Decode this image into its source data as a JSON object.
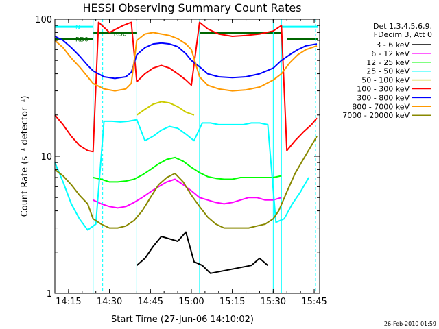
{
  "chart_data": {
    "type": "line",
    "title": "HESSI Observing Summary Count Rates",
    "xlabel": "Start Time (27-Jun-06 14:10:02)",
    "ylabel": "Count Rate (s⁻¹ detector⁻¹)",
    "x_unit": "minutes since 14:10:02",
    "xlim": [
      0,
      97
    ],
    "ylim": [
      1,
      100
    ],
    "y_scale": "log",
    "x_ticks": [
      {
        "value": 5,
        "label": "14:15"
      },
      {
        "value": 20,
        "label": "14:30"
      },
      {
        "value": 35,
        "label": "14:45"
      },
      {
        "value": 50,
        "label": "15:00"
      },
      {
        "value": 65,
        "label": "15:15"
      },
      {
        "value": 80,
        "label": "15:30"
      },
      {
        "value": 95,
        "label": "15:45"
      }
    ],
    "y_ticks": [
      {
        "value": 1,
        "label": "1"
      },
      {
        "value": 10,
        "label": "10"
      },
      {
        "value": 100,
        "label": "100"
      }
    ],
    "legend_header": [
      "Det 1,3,4,5,6,9,",
      "FDecim 3, Att 0"
    ],
    "legend_position": "right",
    "series": [
      {
        "name": "3 - 6 keV",
        "color": "#000000",
        "x": [
          30,
          33,
          36,
          39,
          42,
          45,
          48,
          51,
          54,
          57,
          72,
          75,
          78
        ],
        "y": [
          1.6,
          1.8,
          2.2,
          2.6,
          2.5,
          2.4,
          2.8,
          1.7,
          1.6,
          1.4,
          1.6,
          1.8,
          1.6
        ]
      },
      {
        "name": "6 - 12 keV",
        "color": "#ff00ff",
        "x": [
          14,
          17,
          20,
          23,
          26,
          29,
          32,
          35,
          38,
          41,
          44,
          47,
          50,
          53,
          56,
          59,
          62,
          65,
          68,
          71,
          74,
          77,
          80,
          83
        ],
        "y": [
          4.8,
          4.5,
          4.3,
          4.2,
          4.3,
          4.6,
          5.0,
          5.5,
          6.0,
          6.5,
          6.8,
          6.2,
          5.6,
          5.0,
          4.8,
          4.6,
          4.5,
          4.6,
          4.8,
          5.0,
          5.0,
          4.8,
          4.8,
          5.0
        ]
      },
      {
        "name": "12 - 25 keV",
        "color": "#00ff00",
        "x": [
          14,
          17,
          20,
          23,
          26,
          29,
          32,
          35,
          38,
          41,
          44,
          47,
          50,
          53,
          56,
          59,
          62,
          65,
          68,
          71,
          74,
          77,
          80,
          83
        ],
        "y": [
          7.0,
          6.8,
          6.5,
          6.5,
          6.6,
          6.8,
          7.3,
          8.0,
          8.8,
          9.5,
          9.8,
          9.2,
          8.3,
          7.6,
          7.1,
          6.9,
          6.8,
          6.8,
          7.0,
          7.0,
          7.0,
          7.0,
          7.0,
          7.2
        ]
      },
      {
        "name": "25 - 50 keV",
        "color": "#00ffff",
        "x": [
          0,
          3,
          6,
          9,
          12,
          15,
          18,
          21,
          24,
          27,
          30,
          33,
          36,
          39,
          42,
          45,
          48,
          51,
          54,
          57,
          60,
          63,
          66,
          69,
          72,
          75,
          78,
          81,
          84,
          87,
          90,
          93
        ],
        "y": [
          9.0,
          6.5,
          4.5,
          3.5,
          2.9,
          3.2,
          18.0,
          18.0,
          17.8,
          18.0,
          18.5,
          13.0,
          14.0,
          15.5,
          16.5,
          16.0,
          14.5,
          13.0,
          17.5,
          17.5,
          17.0,
          17.0,
          17.0,
          17.0,
          17.5,
          17.5,
          17.0,
          3.3,
          3.5,
          4.5,
          5.5,
          7.0
        ]
      },
      {
        "name": "50 - 100 keV",
        "color": "#cccc00",
        "x": [
          30,
          33,
          36,
          39,
          42,
          45,
          48,
          51
        ],
        "y": [
          20.0,
          22.0,
          24.0,
          25.0,
          24.5,
          23.0,
          21.0,
          20.0
        ]
      },
      {
        "name": "100 - 300 keV",
        "color": "#ff0000",
        "x": [
          0,
          3,
          6,
          9,
          12,
          14,
          16,
          20,
          25,
          28,
          30,
          33,
          36,
          39,
          42,
          45,
          48,
          50,
          53,
          56,
          60,
          65,
          70,
          75,
          80,
          83,
          85,
          88,
          91,
          94,
          96
        ],
        "y": [
          20.0,
          17.0,
          14.0,
          12.0,
          11.0,
          10.8,
          95.0,
          80.0,
          90.0,
          95.0,
          35.0,
          40.0,
          44.0,
          46.0,
          44.0,
          40.0,
          36.0,
          33.0,
          95.0,
          85.0,
          78.0,
          75.0,
          76.0,
          78.0,
          82.0,
          90.0,
          11.0,
          13.0,
          15.0,
          17.0,
          19.0
        ]
      },
      {
        "name": "300 - 800 keV",
        "color": "#0000ff",
        "x": [
          0,
          3,
          6,
          9,
          12,
          14,
          18,
          22,
          26,
          28,
          30,
          33,
          36,
          39,
          42,
          45,
          48,
          50,
          53,
          56,
          60,
          65,
          70,
          75,
          80,
          83,
          86,
          89,
          92,
          96
        ],
        "y": [
          75.0,
          70.0,
          62.0,
          54.0,
          46.0,
          42.0,
          38.0,
          37.0,
          38.0,
          41.0,
          55.0,
          62.0,
          66.0,
          67.0,
          66.0,
          63.0,
          56.0,
          50.0,
          45.0,
          40.0,
          38.0,
          37.5,
          38.0,
          40.0,
          44.0,
          50.0,
          55.0,
          60.0,
          64.0,
          66.0
        ]
      },
      {
        "name": "800 - 7000 keV",
        "color": "#ff9900",
        "x": [
          0,
          3,
          6,
          9,
          12,
          14,
          18,
          22,
          26,
          28,
          30,
          33,
          36,
          39,
          42,
          45,
          48,
          50,
          53,
          56,
          60,
          65,
          70,
          75,
          80,
          83,
          86,
          89,
          92,
          96
        ],
        "y": [
          70.0,
          62.0,
          52.0,
          45.0,
          38.0,
          34.0,
          31.0,
          30.0,
          31.0,
          34.0,
          70.0,
          78.0,
          80.0,
          78.0,
          76.0,
          72.0,
          66.0,
          60.0,
          38.0,
          33.0,
          31.0,
          30.0,
          30.5,
          32.0,
          36.0,
          40.0,
          48.0,
          55.0,
          60.0,
          64.0
        ]
      },
      {
        "name": "7000 - 20000 keV",
        "color": "#888800",
        "x": [
          0,
          3,
          6,
          9,
          12,
          14,
          17,
          20,
          23,
          26,
          29,
          32,
          35,
          38,
          41,
          44,
          47,
          50,
          53,
          56,
          59,
          62,
          65,
          68,
          71,
          74,
          77,
          80,
          82,
          85,
          88,
          91,
          94,
          96
        ],
        "y": [
          8.0,
          7.2,
          6.2,
          5.2,
          4.5,
          3.5,
          3.2,
          3.0,
          3.0,
          3.1,
          3.4,
          4.0,
          5.0,
          6.2,
          7.0,
          7.5,
          6.5,
          5.2,
          4.3,
          3.6,
          3.2,
          3.0,
          3.0,
          3.0,
          3.0,
          3.1,
          3.2,
          3.5,
          4.0,
          5.5,
          7.5,
          9.5,
          12.0,
          14.0
        ]
      }
    ],
    "state_bars": [
      {
        "label": "N",
        "color": "#00ffff",
        "x_start": 0,
        "x_end": 14,
        "y": 88
      },
      {
        "label": "",
        "color": "#00ffff",
        "x_start": 83,
        "x_end": 96.5,
        "y": 88
      },
      {
        "label": "RD0",
        "color": "#006600",
        "x_start": 0,
        "x_end": 14,
        "y": 72
      },
      {
        "label": "RD0",
        "color": "#006600",
        "x_start": 14,
        "x_end": 30,
        "y": 79
      },
      {
        "label": "",
        "color": "#006600",
        "x_start": 53,
        "x_end": 83,
        "y": 79
      },
      {
        "label": "",
        "color": "#006600",
        "x_start": 85,
        "x_end": 96.5,
        "y": 72
      }
    ],
    "vertical_markers": [
      14,
      30,
      53,
      80,
      83
    ],
    "dashed_markers": [
      17.5,
      95.5
    ],
    "grid": false,
    "timestamp": "26-Feb-2010 01:59"
  }
}
